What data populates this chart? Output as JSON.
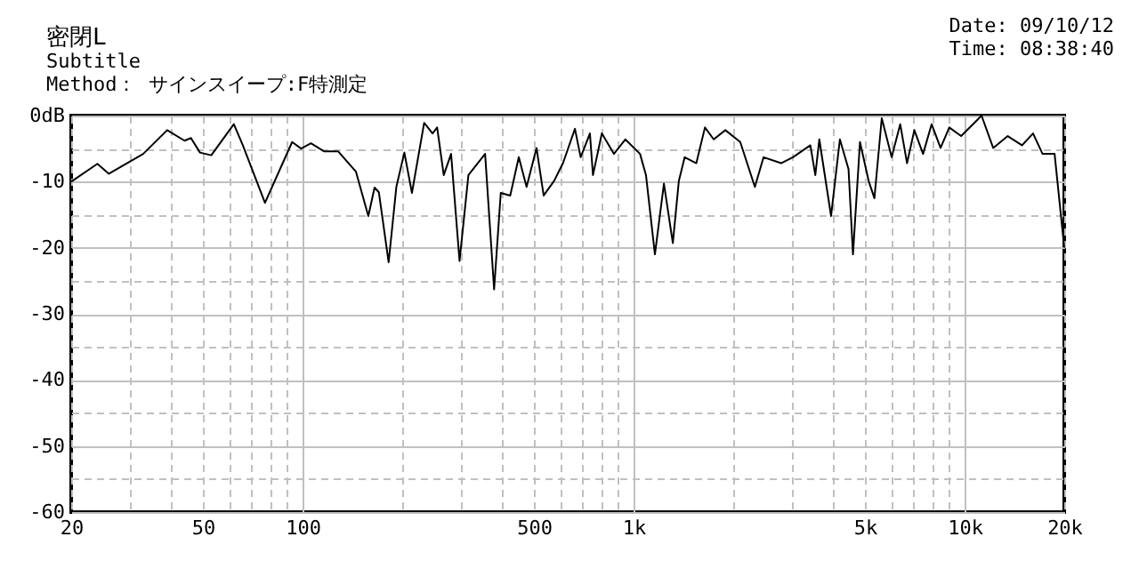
{
  "chart_data": {
    "type": "line",
    "title": "密閉L",
    "subtitle": "Subtitle",
    "annotations": [
      "Method： サインスイープ:F特測定",
      "Date: 09/10/12",
      "Time: 08:38:40"
    ],
    "log": "x",
    "grid": true,
    "marker": "none",
    "line_style": "solid",
    "xlim": [
      20,
      20000
    ],
    "xticks": [
      20,
      {
        "value": 30,
        "label": null
      },
      {
        "value": 40,
        "label": null
      },
      50,
      {
        "value": 60,
        "label": null
      },
      {
        "value": 70,
        "label": null
      },
      {
        "value": 80,
        "label": null
      },
      {
        "value": 90,
        "label": null
      },
      100,
      {
        "value": 200,
        "label": null
      },
      {
        "value": 300,
        "label": null
      },
      {
        "value": 400,
        "label": null
      },
      500,
      {
        "value": 600,
        "label": null
      },
      {
        "value": 700,
        "label": null
      },
      {
        "value": 800,
        "label": null
      },
      {
        "value": 900,
        "label": null
      },
      {
        "value": 1000,
        "label": "1k"
      },
      {
        "value": 2000,
        "label": null
      },
      {
        "value": 3000,
        "label": null
      },
      {
        "value": 4000,
        "label": null
      },
      {
        "value": 5000,
        "label": "5k"
      },
      {
        "value": 6000,
        "label": null
      },
      {
        "value": 7000,
        "label": null
      },
      {
        "value": 8000,
        "label": null
      },
      {
        "value": 9000,
        "label": null
      },
      {
        "value": 10000,
        "label": "10k"
      },
      {
        "value": 20000,
        "label": "20k"
      }
    ],
    "ylim": [
      -60,
      0
    ],
    "yticks": [
      {
        "value": 0,
        "label": "0dB"
      },
      {
        "value": -5,
        "label": null
      },
      -10,
      {
        "value": -15,
        "label": null
      },
      -20,
      {
        "value": -25,
        "label": null
      },
      -30,
      {
        "value": -35,
        "label": null
      },
      -40,
      {
        "value": -45,
        "label": null
      },
      -50,
      {
        "value": -55,
        "label": null
      },
      -60
    ],
    "x": [
      20,
      24,
      26,
      33,
      39,
      44,
      46,
      49,
      53,
      62,
      66,
      77,
      93,
      99,
      106,
      116,
      128,
      145,
      158,
      165,
      170,
      182,
      192,
      203,
      214,
      233,
      247,
      255,
      267,
      281,
      298,
      317,
      356,
      379,
      397,
      424,
      450,
      475,
      509,
      535,
      575,
      612,
      665,
      692,
      738,
      754,
      802,
      872,
      944,
      1046,
      1090,
      1160,
      1235,
      1314,
      1370,
      1427,
      1547,
      1643,
      1746,
      1893,
      2100,
      2325,
      2470,
      2790,
      3030,
      3420,
      3540,
      3640,
      3950,
      4200,
      4460,
      4600,
      4830,
      5130,
      5340,
      5620,
      6020,
      6390,
      6700,
      7050,
      7490,
      7950,
      8460,
      8990,
      9760,
      10800,
      11250,
      12200,
      13500,
      14900,
      16100,
      17200,
      18700,
      20000
    ],
    "series": [
      {
        "color": "#000000",
        "values": [
          -10,
          -7.3,
          -8.8,
          -5.8,
          -2.2,
          -3.8,
          -3.4,
          -5.6,
          -6,
          -1.3,
          -4.5,
          -13.2,
          -4,
          -5,
          -4.2,
          -5.4,
          -5.4,
          -8.5,
          -15.2,
          -10.9,
          -11.6,
          -22.2,
          -10.8,
          -5.6,
          -11.7,
          -1.1,
          -2.7,
          -1.8,
          -9,
          -5.8,
          -22,
          -9,
          -5.8,
          -26.3,
          -11.7,
          -12.1,
          -6.3,
          -10.8,
          -4.9,
          -12.1,
          -9.9,
          -7.2,
          -2,
          -6.3,
          -2.7,
          -9,
          -2.7,
          -5.8,
          -3.6,
          -5.8,
          -9,
          -21,
          -10.3,
          -19.3,
          -9.9,
          -6.3,
          -7.2,
          -1.8,
          -3.6,
          -2.2,
          -4,
          -10.8,
          -6.3,
          -7.2,
          -6.3,
          -4.5,
          -9,
          -3.6,
          -15.2,
          -3.6,
          -8.1,
          -21,
          -4,
          -9.9,
          -12.5,
          -0.4,
          -6.3,
          -1.3,
          -7.2,
          -2.2,
          -5.8,
          -1.3,
          -4.9,
          -1.8,
          -3.1,
          -0.9,
          0,
          -4.9,
          -3.1,
          -4.5,
          -2.7,
          -5.8,
          -5.8,
          -20
        ]
      }
    ]
  }
}
